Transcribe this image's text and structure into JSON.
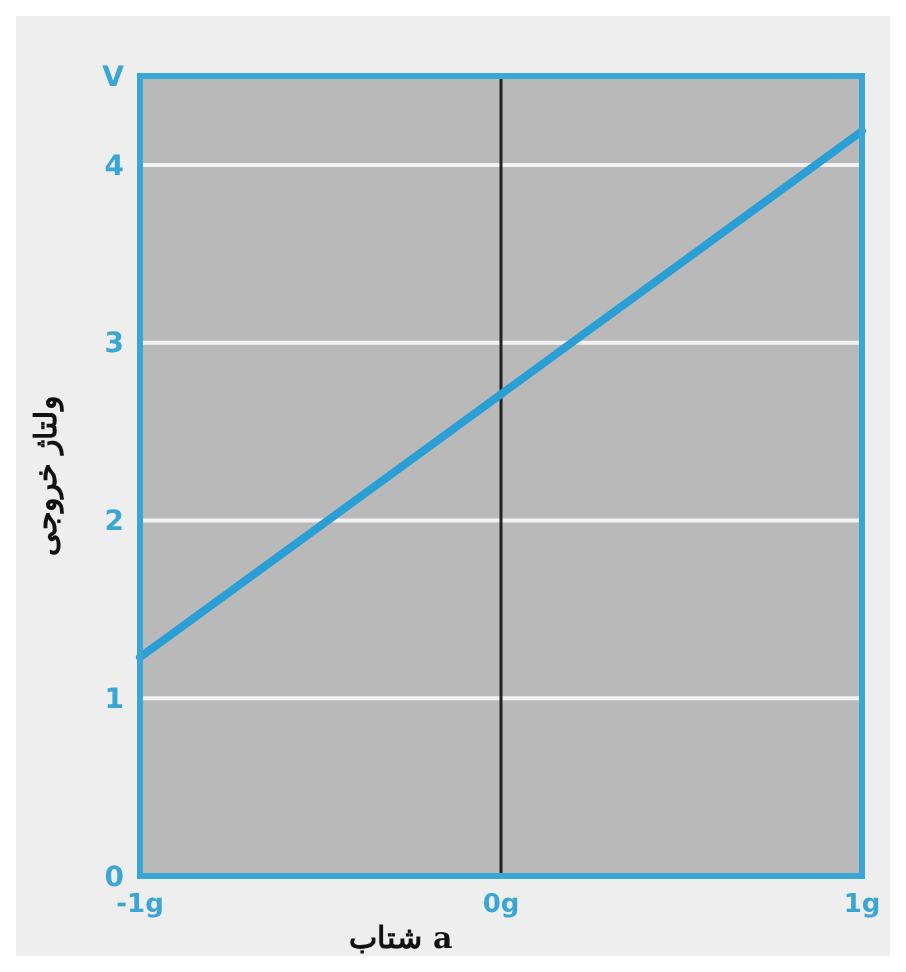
{
  "chart_data": {
    "type": "line",
    "xlabel": "شتاب a",
    "ylabel": "ولتاژ خروجی",
    "x": [
      -1,
      0,
      1
    ],
    "series": [
      {
        "color": "#2a9fd6",
        "values": [
          1.23,
          2.71,
          4.19
        ]
      }
    ],
    "xlim": [
      -1,
      1
    ],
    "ylim": [
      0,
      4.5
    ],
    "xticks": [
      {
        "value": -1,
        "label": "-1g"
      },
      {
        "value": 0,
        "label": "0g"
      },
      {
        "value": 1,
        "label": "1g"
      }
    ],
    "yticks": [
      0,
      1,
      2,
      3,
      4,
      {
        "value": 4.5,
        "label": "V"
      }
    ],
    "ref_lines": [
      {
        "axis": "x",
        "value": 0,
        "color": "#222222"
      }
    ],
    "grid": "y",
    "marker": "none",
    "line_style": "solid"
  }
}
